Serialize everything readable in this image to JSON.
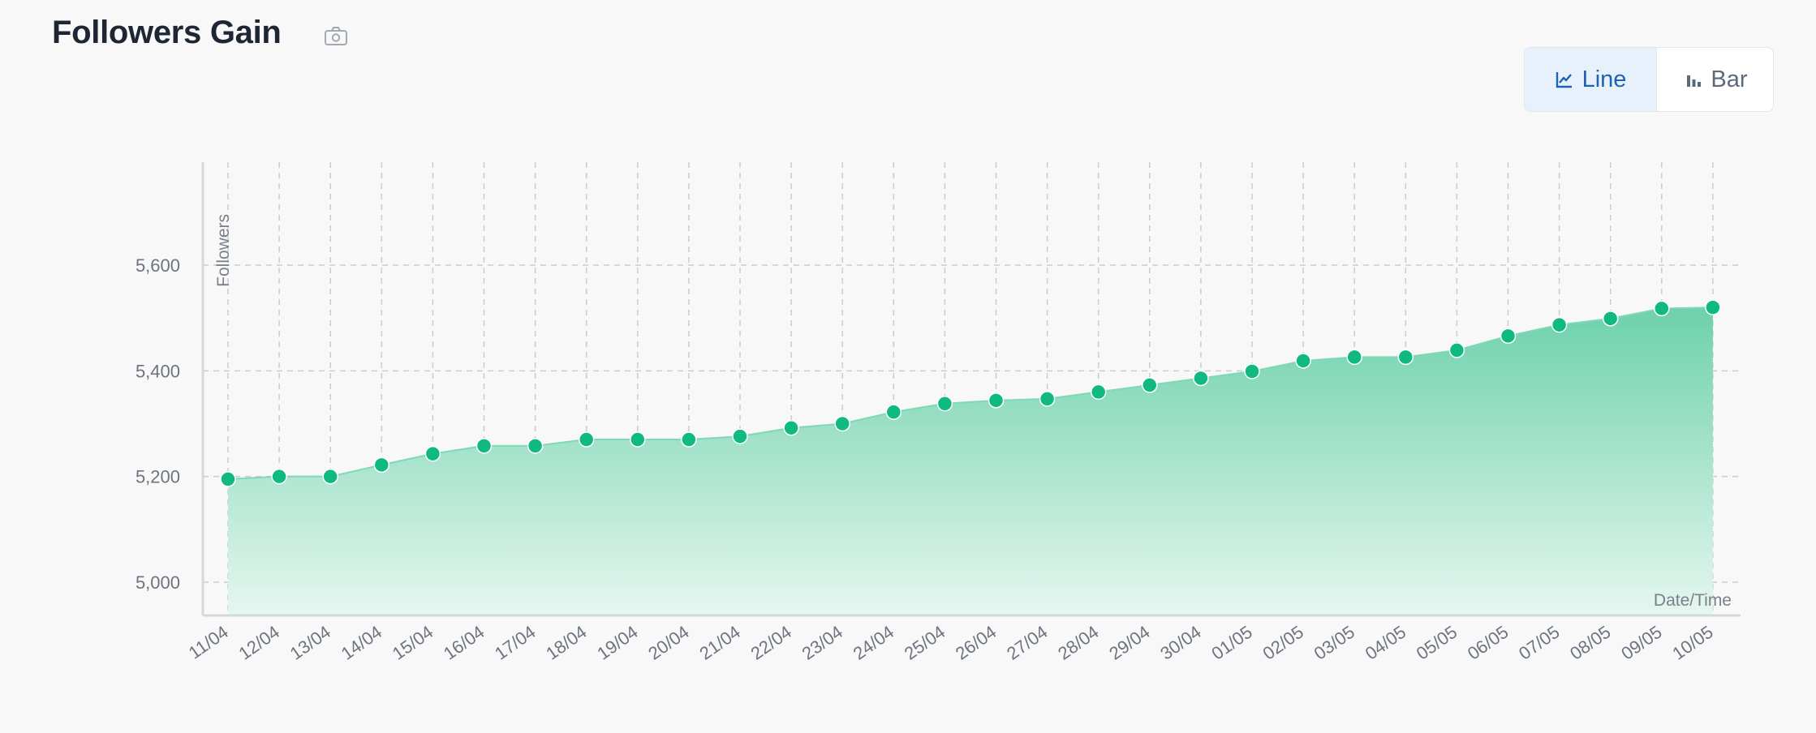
{
  "header": {
    "title": "Followers Gain"
  },
  "toolbar": {
    "line_label": "Line",
    "bar_label": "Bar"
  },
  "colors": {
    "accent": "#10b981",
    "area_top": "#6dd1ab",
    "area_bottom": "#e6f7f0",
    "active_toggle_bg": "#e6f1fc",
    "active_toggle_text": "#1d63b0"
  },
  "icons": {
    "camera": "camera-icon",
    "line_chart": "line-chart-icon",
    "bar_chart": "bar-chart-icon"
  },
  "chart_data": {
    "type": "area",
    "xlabel": "Date/Time",
    "ylabel": "Followers",
    "ylim": [
      4940,
      5780
    ],
    "yticks": [
      5000,
      5200,
      5400,
      5600
    ],
    "ytick_labels": [
      "5,000",
      "5,200",
      "5,400",
      "5,600"
    ],
    "grid": true,
    "categories": [
      "11/04",
      "12/04",
      "13/04",
      "14/04",
      "15/04",
      "16/04",
      "17/04",
      "18/04",
      "19/04",
      "20/04",
      "21/04",
      "22/04",
      "23/04",
      "24/04",
      "25/04",
      "26/04",
      "27/04",
      "28/04",
      "29/04",
      "30/04",
      "01/05",
      "02/05",
      "03/05",
      "04/05",
      "05/05",
      "06/05",
      "07/05",
      "08/05",
      "09/05",
      "10/05"
    ],
    "series": [
      {
        "values": [
          5195,
          5200,
          5200,
          5222,
          5243,
          5258,
          5258,
          5270,
          5270,
          5270,
          5276,
          5292,
          5300,
          5322,
          5338,
          5344,
          5347,
          5360,
          5373,
          5386,
          5399,
          5419,
          5426,
          5426,
          5439,
          5466,
          5487,
          5499,
          5518,
          5520
        ]
      }
    ]
  }
}
